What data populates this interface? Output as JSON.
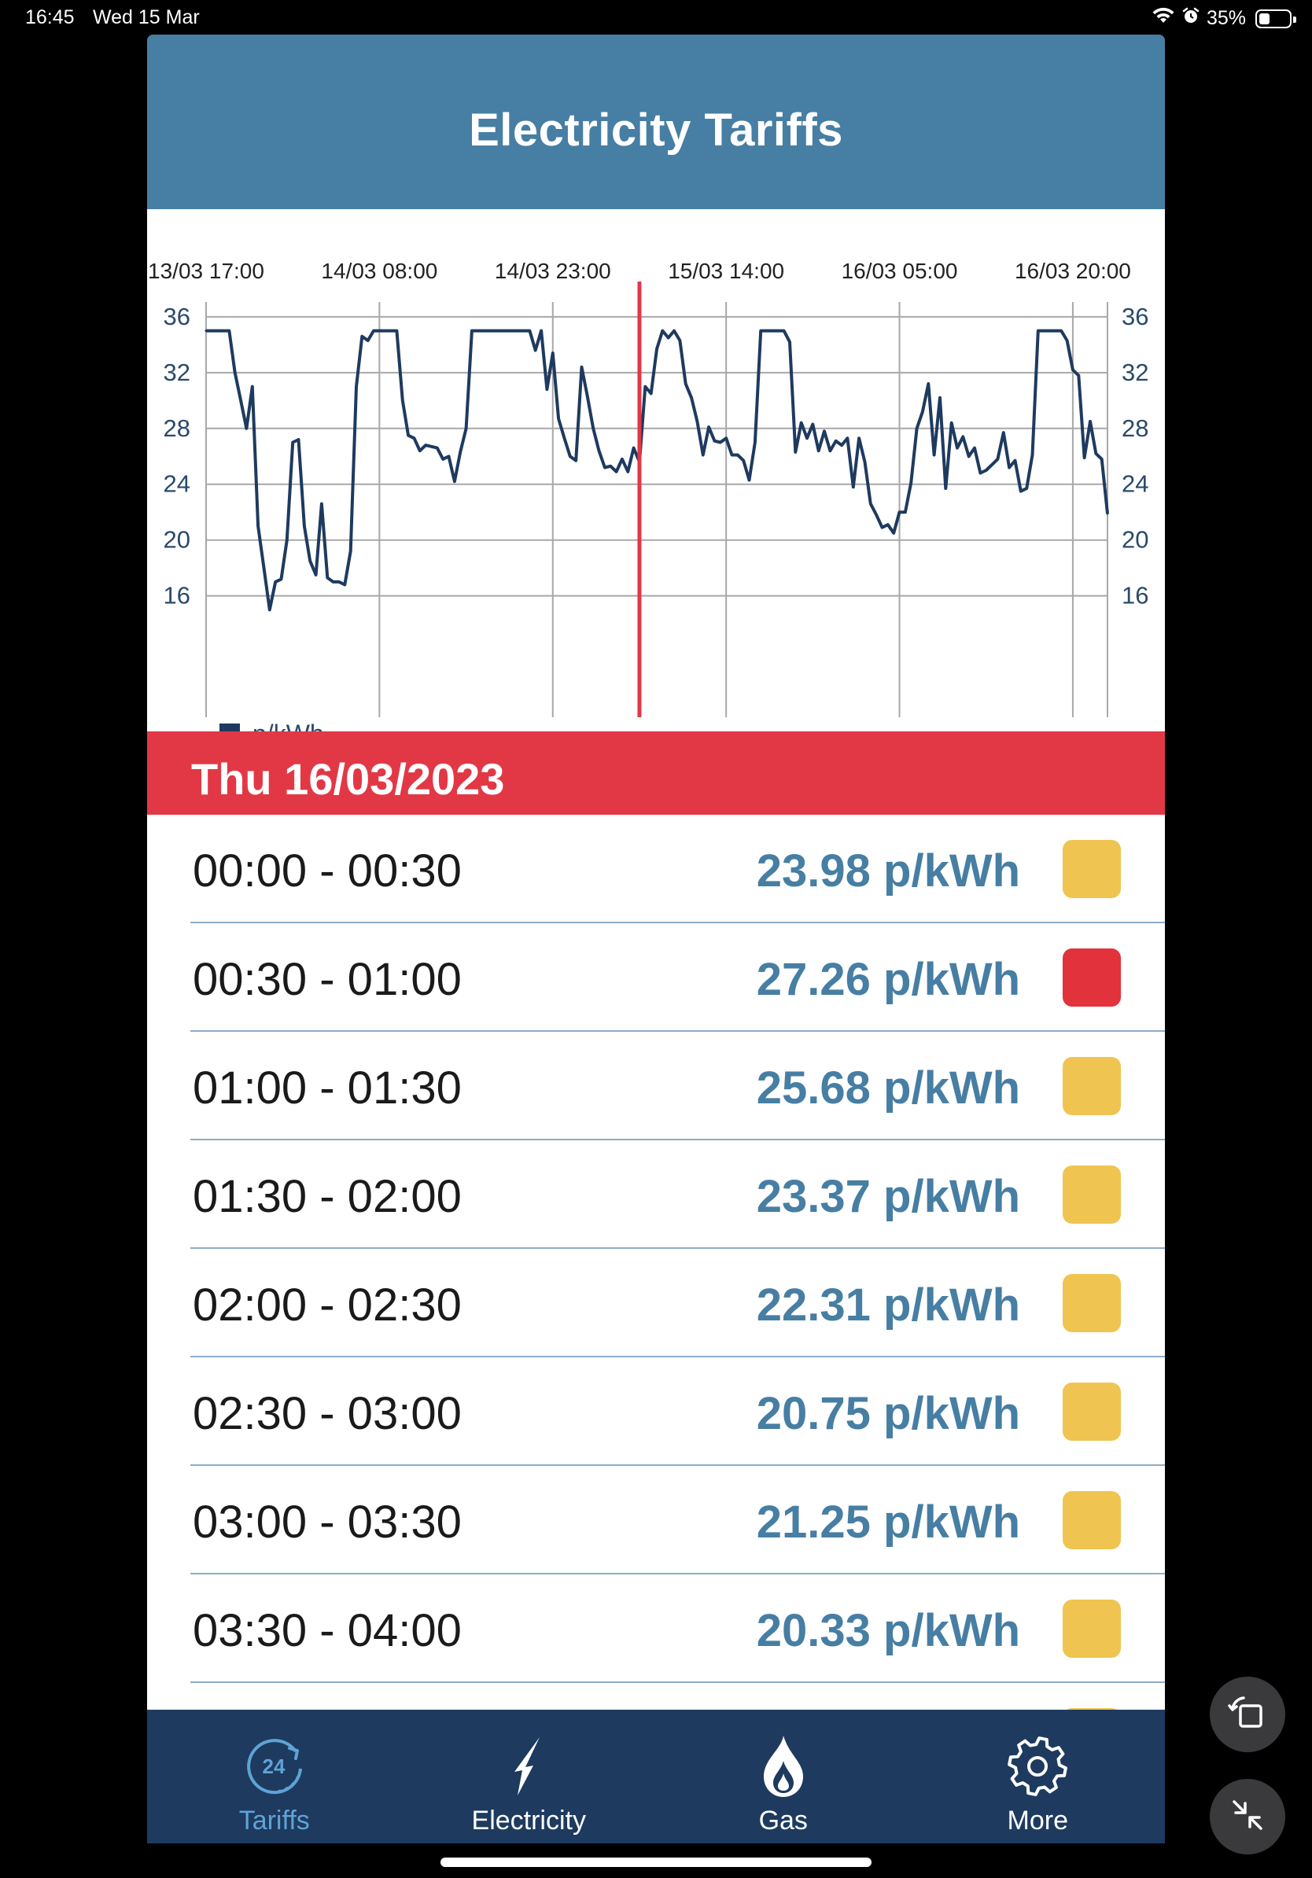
{
  "status_bar": {
    "time": "16:45",
    "date": "Wed 15 Mar",
    "battery": "35%",
    "battery_level": 0.35
  },
  "header": {
    "title": "Electricity Tariffs"
  },
  "chart_data": {
    "type": "line",
    "x_tick_labels": [
      "13/03 17:00",
      "14/03 08:00",
      "14/03 23:00",
      "15/03 14:00",
      "16/03 05:00",
      "16/03 20:00"
    ],
    "y_ticks": [
      36,
      32,
      28,
      24,
      20,
      16
    ],
    "ylim": [
      13.5,
      36.5
    ],
    "grid": true,
    "legend": {
      "label": "p/kWh",
      "position": "bottom-left"
    },
    "current_marker_index": 75,
    "colors": {
      "line": "#1e3a5f",
      "marker": "#e23846",
      "grid": "#a8a8a8"
    },
    "series": [
      {
        "name": "p/kWh",
        "values": [
          35,
          35,
          35,
          35,
          35,
          32,
          30,
          28,
          31,
          21,
          18,
          15,
          17,
          17.2,
          20,
          27,
          27.2,
          21,
          18.5,
          17.5,
          22.6,
          17.3,
          17,
          17,
          16.8,
          19.2,
          31,
          34.6,
          34.3,
          35,
          35,
          35,
          35,
          35,
          30,
          27.5,
          27.3,
          26.4,
          26.8,
          26.7,
          26.6,
          25.8,
          26,
          24.2,
          26.3,
          28,
          35,
          35,
          35,
          35,
          35,
          35,
          35,
          35,
          35,
          35,
          35,
          33.6,
          35,
          30.8,
          33.4,
          28.7,
          27.3,
          26,
          25.7,
          32.4,
          30.3,
          28,
          26.4,
          25.2,
          25.3,
          24.9,
          25.8,
          24.9,
          26.6,
          25.6,
          31,
          30.5,
          33.7,
          35,
          34.5,
          35,
          34.3,
          31.2,
          30.2,
          28.5,
          26.1,
          28.1,
          27.1,
          27,
          27.3,
          26.1,
          26.1,
          25.7,
          24.3,
          27,
          35,
          35,
          35,
          35,
          35,
          34.2,
          26.3,
          28.4,
          27.3,
          28.3,
          26.4,
          27.8,
          26.4,
          27.1,
          26.8,
          27.3,
          23.8,
          27.3,
          25.6,
          22.6,
          21.8,
          20.9,
          21.1,
          20.5,
          22,
          22,
          24.1,
          28,
          29.2,
          31.2,
          26.1,
          30.2,
          23.7,
          28.4,
          26.6,
          27.4,
          26,
          26.6,
          24.8,
          25,
          25.4,
          25.8,
          27.7,
          25.2,
          25.7,
          23.5,
          23.7,
          26.1,
          35,
          35,
          35,
          35,
          35,
          34.3,
          32.2,
          31.8,
          25.9,
          28.5,
          26.2,
          25.8,
          21.9
        ]
      }
    ]
  },
  "date_header": "Thu 16/03/2023",
  "tariffs": [
    {
      "slot": "00:00 - 00:30",
      "price": "23.98 p/kWh",
      "color": "#f0c451"
    },
    {
      "slot": "00:30 - 01:00",
      "price": "27.26 p/kWh",
      "color": "#e2323c"
    },
    {
      "slot": "01:00 - 01:30",
      "price": "25.68 p/kWh",
      "color": "#f0c451"
    },
    {
      "slot": "01:30 - 02:00",
      "price": "23.37 p/kWh",
      "color": "#f0c451"
    },
    {
      "slot": "02:00 - 02:30",
      "price": "22.31 p/kWh",
      "color": "#f0c451"
    },
    {
      "slot": "02:30 - 03:00",
      "price": "20.75 p/kWh",
      "color": "#f0c451"
    },
    {
      "slot": "03:00 - 03:30",
      "price": "21.25 p/kWh",
      "color": "#f0c451"
    },
    {
      "slot": "03:30 - 04:00",
      "price": "20.33 p/kWh",
      "color": "#f0c451"
    },
    {
      "slot": "",
      "price": "",
      "color": "#f0c451"
    }
  ],
  "tab_bar": {
    "tabs": [
      {
        "label": "Tariffs",
        "icon": "clock-24-icon",
        "active": true
      },
      {
        "label": "Electricity",
        "icon": "lightning-bolt-icon",
        "active": false
      },
      {
        "label": "Gas",
        "icon": "flame-icon",
        "active": false
      },
      {
        "label": "More",
        "icon": "gear-icon",
        "active": false
      }
    ]
  },
  "side_controls": {
    "rotate": "rotate-icon",
    "minimize": "minimize-icon"
  },
  "colors": {
    "header": "#477ea3",
    "date_banner": "#e23846",
    "tab_bar": "#1e3a5f",
    "price_text": "#477ea3",
    "tab_active": "#5fa3d6"
  }
}
